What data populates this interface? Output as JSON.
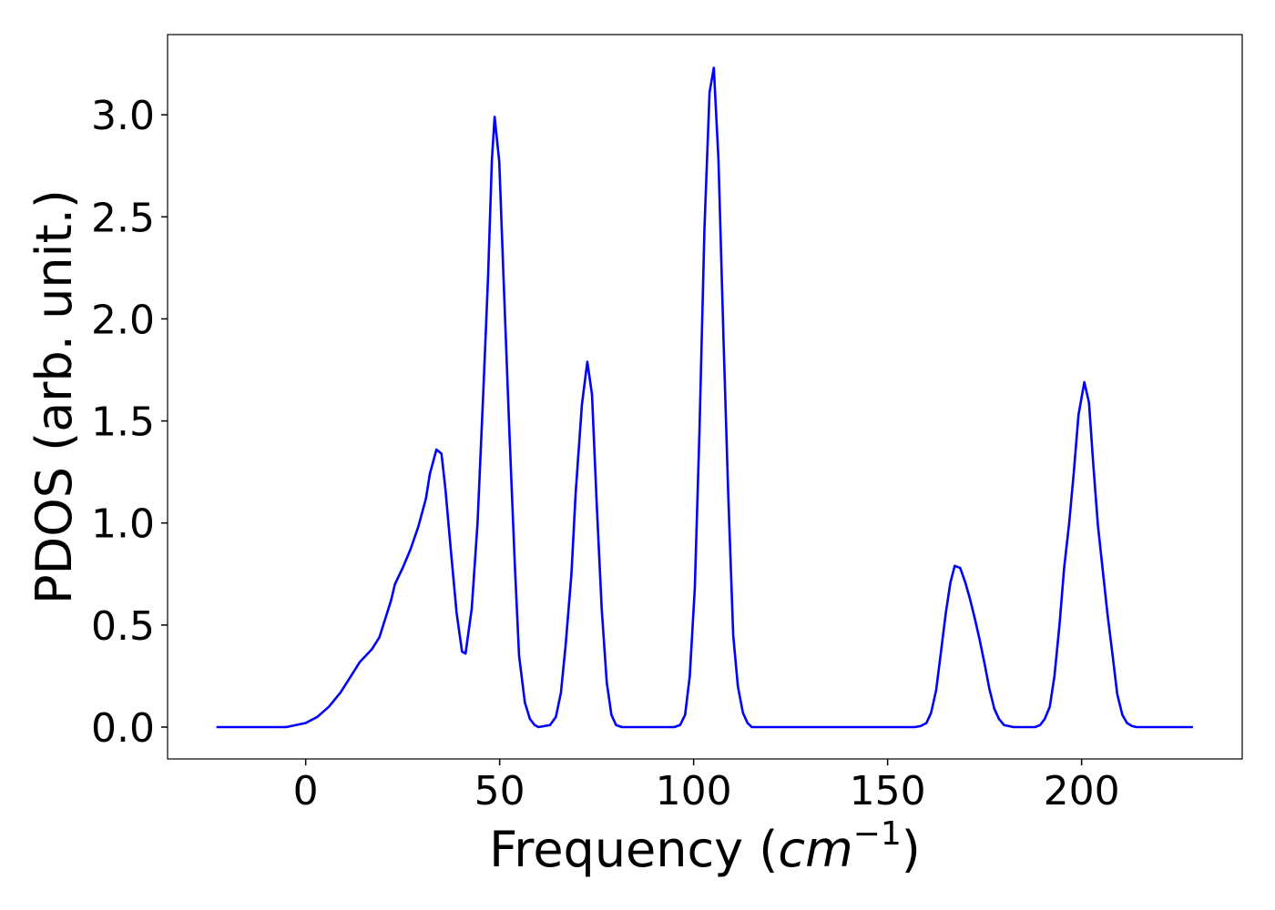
{
  "chart_data": {
    "type": "line",
    "xlabel": [
      "Frequency (",
      "cm",
      "−1",
      ")"
    ],
    "ylabel": "PDOS (arb. unit.)",
    "xlim": [
      -35.6,
      241.4
    ],
    "ylim": [
      -0.156,
      3.393
    ],
    "xticks": [
      0,
      50,
      100,
      150,
      200
    ],
    "yticks": [
      {
        "value": 0,
        "label": "0.0"
      },
      0.5,
      {
        "value": 1,
        "label": "1.0"
      },
      1.5,
      {
        "value": 2,
        "label": "2.0"
      },
      2.5,
      {
        "value": 3,
        "label": "3.0"
      }
    ],
    "grid": false,
    "series": [
      {
        "name": "PDOS",
        "color": "#0000ff",
        "x": [
          -23,
          -5,
          0,
          3,
          6,
          9,
          12,
          14,
          17,
          19,
          20,
          22,
          23,
          25,
          27,
          29,
          31,
          32,
          33.7,
          35,
          36,
          37.5,
          38.9,
          40.3,
          41.2,
          42.8,
          44.3,
          45.8,
          47,
          48,
          48.7,
          49.9,
          51,
          52.5,
          53.9,
          55,
          56.5,
          57.8,
          59,
          60,
          63,
          64.5,
          65.8,
          67,
          68.5,
          69.6,
          71.2,
          72.6,
          73.8,
          75,
          76.3,
          77.6,
          78.8,
          80,
          81.5,
          95,
          96.5,
          97.8,
          99,
          100.3,
          101.5,
          102.8,
          104.1,
          105.2,
          106.4,
          107.7,
          108.9,
          110.2,
          111.4,
          112.7,
          113.9,
          115,
          157,
          158.5,
          160,
          161.2,
          162.5,
          163.7,
          165,
          166.2,
          167.3,
          168.7,
          170,
          171.2,
          172.5,
          173.7,
          175,
          176.2,
          177.5,
          178.7,
          180,
          181.2,
          182.5,
          188,
          189.3,
          190.5,
          191.8,
          193,
          194.3,
          195.5,
          196.8,
          198,
          199.2,
          200.7,
          201.9,
          203,
          204.2,
          205.5,
          206.7,
          208,
          209.2,
          210.5,
          211.7,
          213,
          214.2,
          228.7
        ],
        "values": [
          0,
          0,
          0.02,
          0.05,
          0.1,
          0.17,
          0.26,
          0.32,
          0.38,
          0.44,
          0.5,
          0.62,
          0.7,
          0.78,
          0.87,
          0.98,
          1.12,
          1.24,
          1.36,
          1.34,
          1.17,
          0.85,
          0.56,
          0.37,
          0.36,
          0.58,
          1.0,
          1.65,
          2.2,
          2.78,
          2.99,
          2.77,
          2.2,
          1.45,
          0.8,
          0.35,
          0.12,
          0.04,
          0.01,
          0,
          0.01,
          0.05,
          0.17,
          0.4,
          0.75,
          1.15,
          1.58,
          1.79,
          1.63,
          1.1,
          0.58,
          0.22,
          0.06,
          0.01,
          0,
          0,
          0.01,
          0.06,
          0.25,
          0.68,
          1.45,
          2.45,
          3.11,
          3.23,
          2.78,
          1.9,
          1.15,
          0.45,
          0.2,
          0.07,
          0.02,
          0,
          0,
          0.005,
          0.02,
          0.07,
          0.18,
          0.36,
          0.56,
          0.71,
          0.79,
          0.78,
          0.71,
          0.63,
          0.53,
          0.43,
          0.31,
          0.19,
          0.09,
          0.04,
          0.01,
          0.005,
          0,
          0,
          0.01,
          0.04,
          0.1,
          0.25,
          0.5,
          0.78,
          1.0,
          1.25,
          1.53,
          1.69,
          1.59,
          1.29,
          0.99,
          0.76,
          0.55,
          0.35,
          0.16,
          0.06,
          0.02,
          0.005,
          0,
          0
        ]
      }
    ]
  }
}
